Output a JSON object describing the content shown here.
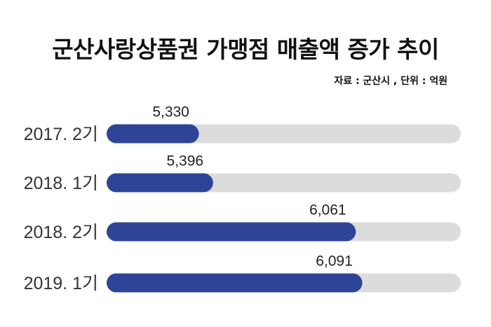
{
  "title": "군산사랑상품권 가맹점 매출액 증가 추이",
  "source": "자료 : 군산시 , 단위  : 억원",
  "chart_data": {
    "type": "bar",
    "orientation": "horizontal",
    "categories": [
      "2017. 2기",
      "2018. 1기",
      "2018. 2기",
      "2019. 1기"
    ],
    "values": [
      5330,
      5396,
      6061,
      6091
    ],
    "value_labels": [
      "5,330",
      "5,396",
      "6,061",
      "6,091"
    ],
    "xlim": [
      4900,
      6550
    ],
    "grid": false,
    "colors": {
      "bar": "#2e4597",
      "track": "#dcdcdc"
    }
  }
}
